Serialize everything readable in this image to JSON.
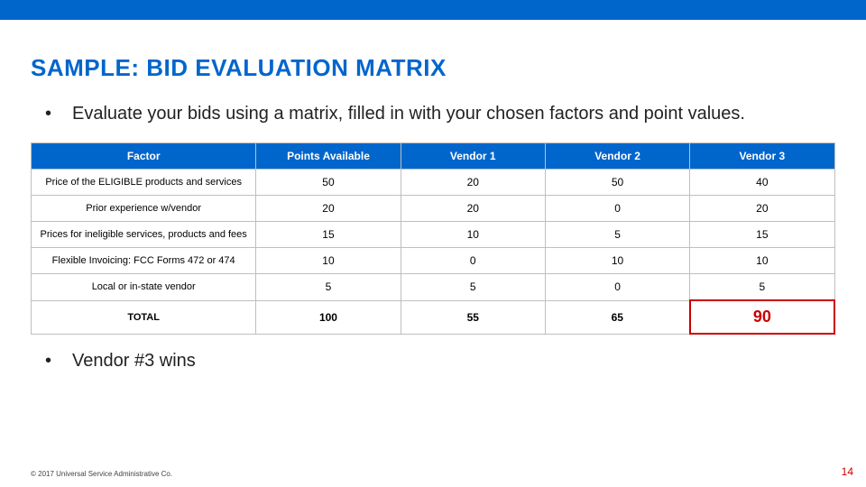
{
  "colors": {
    "accent_blue": "#0066cc",
    "accent_red": "#cc0000",
    "border_gray": "#bfbfbf",
    "text": "#222222",
    "bg": "#ffffff"
  },
  "title": "SAMPLE: BID EVALUATION MATRIX",
  "bullet_intro": "Evaluate your bids using a matrix, filled in with your chosen factors and point values.",
  "table": {
    "columns": [
      "Factor",
      "Points Available",
      "Vendor 1",
      "Vendor 2",
      "Vendor 3"
    ],
    "rows": [
      {
        "factor": "Price of the ELIGIBLE products and services",
        "points": "50",
        "v1": "20",
        "v2": "50",
        "v3": "40"
      },
      {
        "factor": "Prior experience w/vendor",
        "points": "20",
        "v1": "20",
        "v2": "0",
        "v3": "20"
      },
      {
        "factor": "Prices for ineligible services, products and fees",
        "points": "15",
        "v1": "10",
        "v2": "5",
        "v3": "15"
      },
      {
        "factor": "Flexible Invoicing: FCC Forms 472 or 474",
        "points": "10",
        "v1": "0",
        "v2": "10",
        "v3": "10"
      },
      {
        "factor": "Local or in-state vendor",
        "points": "5",
        "v1": "5",
        "v2": "0",
        "v3": "5"
      }
    ],
    "total": {
      "label": "TOTAL",
      "points": "100",
      "v1": "55",
      "v2": "65",
      "v3": "90",
      "winner_col": 4
    }
  },
  "bullet_conclusion": "Vendor #3 wins",
  "footer": "© 2017 Universal Service Administrative Co.",
  "page_number": "14"
}
